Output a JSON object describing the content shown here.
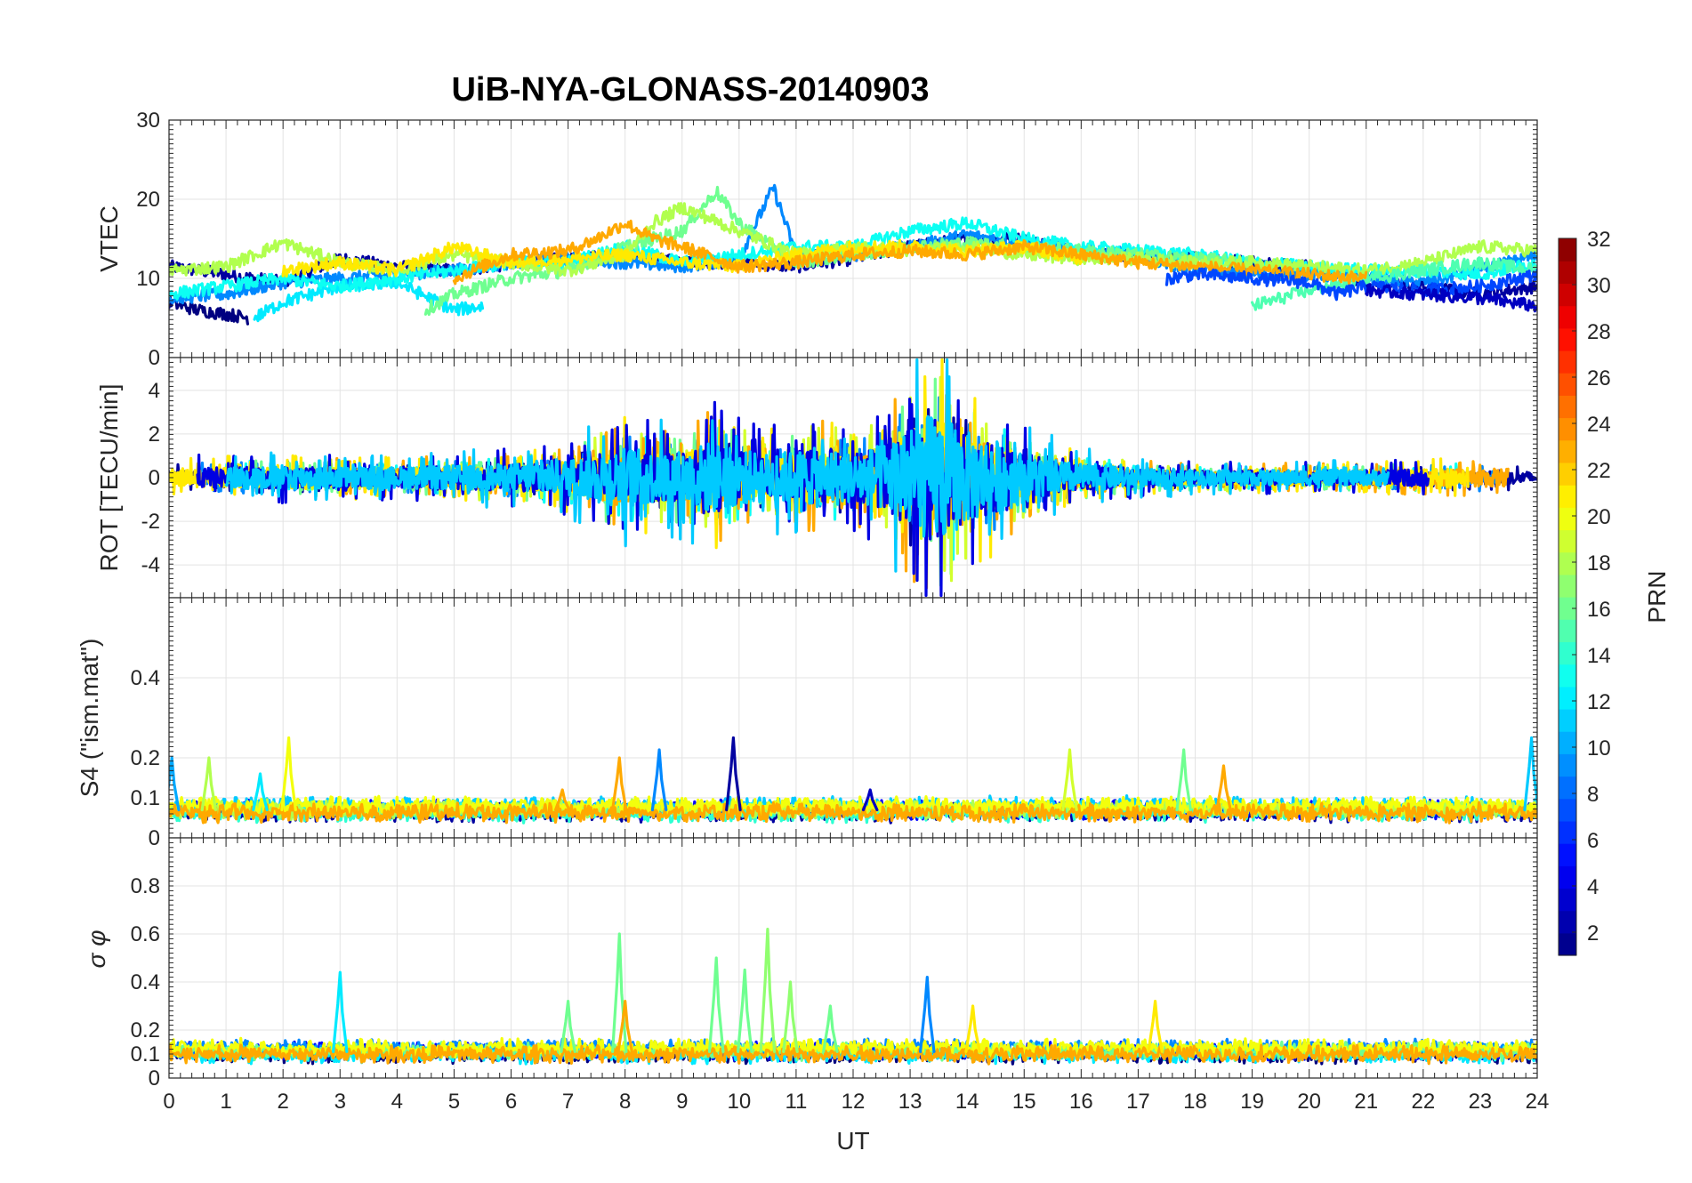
{
  "title": "UiB-NYA-GLONASS-20140903",
  "chart_data": [
    {
      "type": "line",
      "panel": "VTEC",
      "ylabel": "VTEC",
      "xlim": [
        0,
        24
      ],
      "ylim": [
        0,
        30
      ],
      "yticks": [
        0,
        10,
        20,
        30
      ],
      "series": [
        {
          "prn": 2,
          "x": [
            0,
            1,
            2,
            3,
            4,
            5,
            6,
            7,
            8,
            9,
            10,
            11,
            12,
            13,
            14,
            15,
            16,
            17,
            18,
            19,
            20,
            21,
            22,
            23,
            24
          ],
          "y": [
            11.5,
            10.5,
            9.5,
            12.5,
            11.5,
            11,
            11.8,
            12.5,
            13,
            12,
            12,
            11.5,
            12.5,
            14,
            15,
            15,
            13,
            13,
            12.5,
            12,
            11.5,
            9.5,
            9,
            8,
            9
          ]
        },
        {
          "prn": 1,
          "x": [
            0,
            0.5,
            1,
            1.4
          ],
          "y": [
            7,
            6,
            5.5,
            5
          ]
        },
        {
          "prn": 9,
          "x": [
            0,
            1,
            2,
            3,
            4,
            5,
            6,
            7,
            8,
            9,
            10,
            10.6,
            11,
            12,
            13,
            14,
            15,
            16,
            17,
            18,
            19,
            20,
            21,
            22,
            23,
            24
          ],
          "y": [
            7.5,
            8,
            9.5,
            10,
            10.5,
            11,
            12,
            12.5,
            12,
            11.5,
            12.5,
            21.5,
            13,
            13,
            14,
            15.5,
            14.5,
            13.5,
            13,
            11,
            10.5,
            10.5,
            10,
            9.5,
            11,
            13
          ]
        },
        {
          "prn": 12,
          "x": [
            1.5,
            2,
            3,
            4,
            5,
            5.5
          ],
          "y": [
            5,
            7,
            9,
            9.5,
            6,
            6.5
          ]
        },
        {
          "prn": 13,
          "x": [
            0,
            1,
            2,
            3,
            4,
            5,
            6,
            7,
            8,
            9,
            10,
            11,
            12,
            13,
            14,
            15,
            16,
            17,
            18,
            19,
            20,
            21,
            22,
            23,
            24
          ],
          "y": [
            8,
            9,
            10,
            9,
            10,
            11,
            12,
            12,
            14,
            12,
            13,
            14,
            14,
            16,
            17,
            15,
            14,
            13.5,
            13,
            12,
            11.5,
            11,
            11,
            10.5,
            12
          ]
        },
        {
          "prn": 16,
          "x": [
            4.5,
            5,
            6,
            7,
            8,
            9,
            9.6,
            10,
            11,
            12,
            13,
            14,
            15,
            16,
            17,
            18,
            19
          ],
          "y": [
            6,
            8,
            10,
            11,
            14,
            16,
            21,
            17,
            12,
            13,
            14,
            14.5,
            14,
            13.5,
            13,
            12.5,
            12
          ]
        },
        {
          "prn": 18,
          "x": [
            0,
            1,
            2,
            3,
            4,
            5,
            6,
            7,
            8,
            8.5,
            9,
            10,
            11,
            12,
            13,
            14,
            15,
            16,
            17,
            18,
            19,
            20,
            21,
            22,
            23,
            24
          ],
          "y": [
            11,
            11.5,
            14.5,
            12,
            11,
            13,
            12,
            11,
            13,
            17,
            19,
            16,
            13,
            14,
            13.5,
            14,
            13,
            12.5,
            12.5,
            12,
            12,
            11.5,
            11,
            12,
            14,
            13.5
          ]
        },
        {
          "prn": 15,
          "x": [
            19,
            19.5,
            20,
            21,
            22,
            23,
            24
          ],
          "y": [
            6.5,
            7.5,
            8.5,
            10,
            11,
            12,
            11
          ]
        },
        {
          "prn": 21,
          "x": [
            2,
            3,
            4,
            5,
            6,
            7,
            8,
            9,
            10,
            11,
            12,
            13,
            14,
            15,
            16
          ],
          "y": [
            11,
            12,
            11,
            14,
            12,
            12.5,
            13,
            12,
            11.5,
            13,
            14,
            14,
            13.5,
            14,
            12.5
          ]
        },
        {
          "prn": 23,
          "x": [
            5,
            6,
            7,
            7.5,
            8,
            8.5,
            9,
            10,
            11,
            12,
            13,
            14,
            15,
            16,
            17,
            18,
            19,
            20,
            21
          ],
          "y": [
            10,
            13,
            13.5,
            15,
            17,
            15,
            14,
            11.5,
            12,
            13,
            13.5,
            13,
            14,
            13,
            12,
            11.5,
            11,
            10.5,
            10
          ]
        },
        {
          "prn": 7,
          "x": [
            17.5,
            18,
            19,
            20,
            20.5,
            21,
            22,
            23,
            24
          ],
          "y": [
            10,
            10.5,
            10,
            9.5,
            8,
            9,
            8.5,
            9,
            10.5
          ]
        },
        {
          "prn": 3,
          "x": [
            21,
            22,
            23,
            24
          ],
          "y": [
            8.5,
            8,
            7.5,
            6.5
          ]
        }
      ]
    },
    {
      "type": "line",
      "panel": "ROT",
      "ylabel": "ROT [TECU/min]",
      "xlim": [
        0,
        24
      ],
      "ylim": [
        -5.5,
        5.5
      ],
      "yticks": [
        -4,
        -2,
        0,
        2,
        4
      ],
      "envelope": {
        "x": [
          0,
          1,
          2,
          3,
          4,
          5,
          6,
          7,
          7.5,
          8,
          8.5,
          9,
          9.5,
          10,
          10.5,
          11,
          11.5,
          12,
          12.5,
          13,
          13.5,
          14,
          14.5,
          15,
          15.5,
          16,
          17,
          18,
          19,
          20,
          21,
          22,
          23,
          24
        ],
        "amp": [
          0.7,
          0.7,
          0.8,
          0.7,
          0.7,
          0.8,
          0.9,
          1.2,
          1.6,
          2,
          1.7,
          1.8,
          2.4,
          1.8,
          1.6,
          1.8,
          2,
          1.6,
          2.2,
          3.5,
          4.5,
          3,
          2.5,
          1.6,
          1.2,
          0.9,
          0.6,
          0.5,
          0.5,
          0.5,
          0.5,
          0.6,
          0.7,
          0.7
        ]
      },
      "series_prns": [
        2,
        9,
        13,
        16,
        19,
        23,
        21,
        4,
        11
      ]
    },
    {
      "type": "line",
      "panel": "S4",
      "ylabel": "S4 (\"ism.mat\")",
      "xlim": [
        0,
        24
      ],
      "ylim": [
        0,
        0.6
      ],
      "yticks": [
        0,
        0.1,
        0.2,
        0.4
      ],
      "base": 0.07,
      "spikes": [
        {
          "x": 0.05,
          "y": 0.2,
          "prn": 10
        },
        {
          "x": 0.7,
          "y": 0.2,
          "prn": 18
        },
        {
          "x": 2.1,
          "y": 0.25,
          "prn": 20
        },
        {
          "x": 1.6,
          "y": 0.16,
          "prn": 12
        },
        {
          "x": 7.9,
          "y": 0.2,
          "prn": 23
        },
        {
          "x": 8.6,
          "y": 0.22,
          "prn": 9
        },
        {
          "x": 9.9,
          "y": 0.25,
          "prn": 2
        },
        {
          "x": 15.8,
          "y": 0.22,
          "prn": 19
        },
        {
          "x": 17.8,
          "y": 0.22,
          "prn": 16
        },
        {
          "x": 18.5,
          "y": 0.18,
          "prn": 23
        },
        {
          "x": 23.9,
          "y": 0.25,
          "prn": 11
        },
        {
          "x": 6.9,
          "y": 0.12,
          "prn": 23
        },
        {
          "x": 12.3,
          "y": 0.12,
          "prn": 3
        }
      ],
      "series_prns": [
        2,
        5,
        11,
        14,
        18,
        20,
        23
      ]
    },
    {
      "type": "line",
      "panel": "sigma_phi",
      "ylabel": "σ φ",
      "xlim": [
        0,
        24
      ],
      "ylim": [
        0,
        1
      ],
      "yticks": [
        0,
        0.1,
        0.2,
        0.4,
        0.6,
        0.8
      ],
      "xticks": [
        0,
        1,
        2,
        3,
        4,
        5,
        6,
        7,
        8,
        9,
        10,
        11,
        12,
        13,
        14,
        15,
        16,
        17,
        18,
        19,
        20,
        21,
        22,
        23,
        24
      ],
      "xlabel": "UT",
      "base": 0.11,
      "spikes": [
        {
          "x": 3.0,
          "y": 0.44,
          "prn": 12
        },
        {
          "x": 7.0,
          "y": 0.32,
          "prn": 16
        },
        {
          "x": 7.9,
          "y": 0.6,
          "prn": 16
        },
        {
          "x": 9.6,
          "y": 0.5,
          "prn": 16
        },
        {
          "x": 10.1,
          "y": 0.45,
          "prn": 16
        },
        {
          "x": 10.5,
          "y": 0.62,
          "prn": 17
        },
        {
          "x": 10.9,
          "y": 0.4,
          "prn": 17
        },
        {
          "x": 13.3,
          "y": 0.42,
          "prn": 9
        },
        {
          "x": 14.1,
          "y": 0.3,
          "prn": 21
        },
        {
          "x": 17.3,
          "y": 0.32,
          "prn": 21
        },
        {
          "x": 8.0,
          "y": 0.32,
          "prn": 23
        },
        {
          "x": 11.6,
          "y": 0.3,
          "prn": 16
        }
      ],
      "series_prns": [
        1,
        5,
        9,
        12,
        16,
        20,
        23
      ]
    }
  ],
  "colorbar": {
    "label": "PRN",
    "range": [
      1,
      32
    ],
    "ticks": [
      2,
      4,
      6,
      8,
      10,
      12,
      14,
      16,
      18,
      20,
      22,
      24,
      26,
      28,
      30,
      32
    ]
  }
}
